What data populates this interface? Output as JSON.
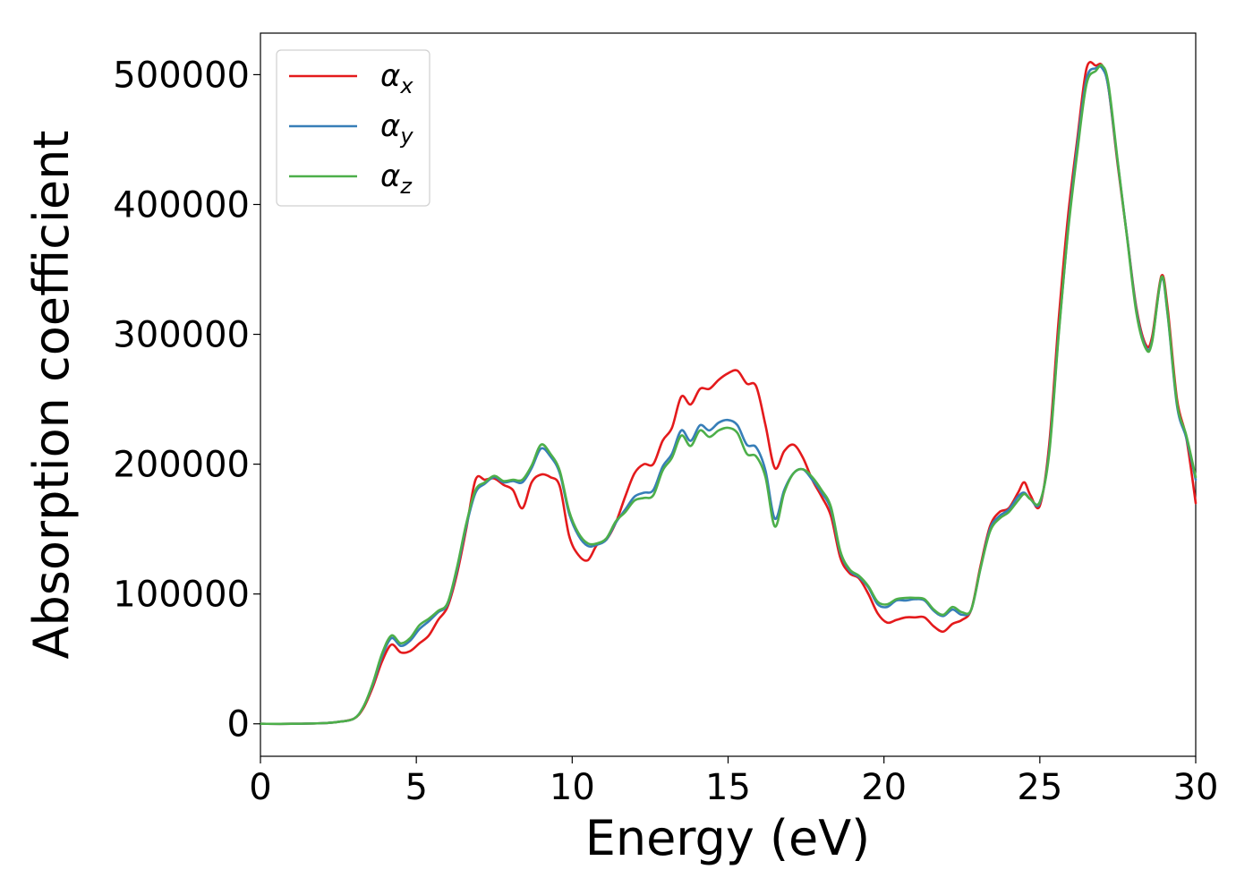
{
  "chart_data": {
    "type": "line",
    "xlabel": "Energy (eV)",
    "ylabel": "Absorption coefficient",
    "xlim": [
      0,
      30
    ],
    "ylim": [
      -25000,
      532000
    ],
    "xticks": [
      0,
      5,
      10,
      15,
      20,
      25,
      30
    ],
    "yticks": [
      0,
      100000,
      200000,
      300000,
      400000,
      500000
    ],
    "grid": false,
    "legend_position": "top-left",
    "series": [
      {
        "name": "α_x",
        "legend_base": "α",
        "legend_sub": "x",
        "color": "#e41a1c",
        "x": [
          0,
          1,
          2,
          2.5,
          3,
          3.3,
          3.6,
          3.9,
          4.2,
          4.5,
          4.8,
          5.1,
          5.4,
          5.7,
          6.0,
          6.3,
          6.6,
          6.9,
          7.2,
          7.5,
          7.8,
          8.1,
          8.4,
          8.7,
          9.0,
          9.3,
          9.6,
          9.9,
          10.2,
          10.5,
          10.8,
          11.1,
          11.4,
          11.7,
          12.0,
          12.3,
          12.6,
          12.9,
          13.2,
          13.5,
          13.8,
          14.1,
          14.4,
          14.7,
          15.0,
          15.3,
          15.6,
          15.9,
          16.2,
          16.5,
          16.8,
          17.1,
          17.4,
          17.7,
          18.0,
          18.3,
          18.6,
          18.9,
          19.2,
          19.5,
          19.8,
          20.1,
          20.4,
          20.7,
          21.0,
          21.3,
          21.6,
          21.9,
          22.2,
          22.5,
          22.8,
          23.1,
          23.4,
          23.7,
          24.0,
          24.3,
          24.5,
          24.7,
          25.0,
          25.3,
          25.6,
          25.9,
          26.2,
          26.5,
          26.8,
          27.0,
          27.2,
          27.5,
          27.8,
          28.1,
          28.4,
          28.6,
          28.9,
          29.1,
          29.4,
          29.7,
          30.0
        ],
        "y": [
          0,
          0,
          500,
          1500,
          4000,
          12000,
          28000,
          48000,
          61000,
          55000,
          56000,
          62000,
          68000,
          80000,
          90000,
          115000,
          150000,
          188000,
          188000,
          189000,
          184000,
          180000,
          166000,
          186000,
          192000,
          190000,
          183000,
          145000,
          130000,
          126000,
          138000,
          142000,
          155000,
          175000,
          193000,
          200000,
          200000,
          218000,
          228000,
          252000,
          246000,
          258000,
          258000,
          265000,
          270000,
          272000,
          262000,
          260000,
          230000,
          197000,
          210000,
          215000,
          205000,
          188000,
          175000,
          160000,
          128000,
          116000,
          112000,
          100000,
          85000,
          78000,
          80000,
          82000,
          82000,
          82000,
          75000,
          71000,
          77000,
          80000,
          88000,
          122000,
          152000,
          163000,
          166000,
          178000,
          186000,
          176000,
          168000,
          215000,
          310000,
          390000,
          450000,
          505000,
          507000,
          507000,
          490000,
          430000,
          375000,
          320000,
          292000,
          298000,
          345000,
          320000,
          250000,
          220000,
          170000
        ]
      },
      {
        "name": "α_y",
        "legend_base": "α",
        "legend_sub": "y",
        "color": "#377eb8",
        "x": [
          0,
          1,
          2,
          2.5,
          3,
          3.3,
          3.6,
          3.9,
          4.2,
          4.5,
          4.8,
          5.1,
          5.4,
          5.7,
          6.0,
          6.3,
          6.6,
          6.9,
          7.2,
          7.5,
          7.8,
          8.1,
          8.4,
          8.7,
          9.0,
          9.3,
          9.6,
          9.9,
          10.2,
          10.5,
          10.8,
          11.1,
          11.4,
          11.7,
          12.0,
          12.3,
          12.6,
          12.9,
          13.2,
          13.5,
          13.8,
          14.1,
          14.4,
          14.7,
          15.0,
          15.3,
          15.6,
          15.9,
          16.2,
          16.5,
          16.8,
          17.1,
          17.4,
          17.7,
          18.0,
          18.3,
          18.6,
          18.9,
          19.2,
          19.5,
          19.8,
          20.1,
          20.4,
          20.7,
          21.0,
          21.3,
          21.6,
          21.9,
          22.2,
          22.5,
          22.8,
          23.1,
          23.4,
          23.7,
          24.0,
          24.3,
          24.5,
          24.7,
          25.0,
          25.3,
          25.6,
          25.9,
          26.2,
          26.5,
          26.8,
          27.0,
          27.2,
          27.5,
          27.8,
          28.1,
          28.4,
          28.6,
          28.9,
          29.1,
          29.4,
          29.7,
          30.0
        ],
        "y": [
          0,
          0,
          500,
          1500,
          4000,
          13000,
          30000,
          52000,
          66000,
          60000,
          64000,
          73000,
          79000,
          86000,
          92000,
          118000,
          152000,
          178000,
          185000,
          190000,
          186000,
          187000,
          186000,
          197000,
          212000,
          206000,
          193000,
          162000,
          145000,
          137000,
          138000,
          142000,
          155000,
          165000,
          175000,
          178000,
          180000,
          198000,
          208000,
          226000,
          218000,
          230000,
          226000,
          232000,
          234000,
          230000,
          215000,
          213000,
          195000,
          158000,
          180000,
          193000,
          196000,
          188000,
          178000,
          165000,
          132000,
          118000,
          113000,
          105000,
          92000,
          90000,
          95000,
          95000,
          96000,
          95000,
          87000,
          83000,
          88000,
          84000,
          88000,
          120000,
          150000,
          160000,
          165000,
          175000,
          178000,
          173000,
          170000,
          210000,
          300000,
          380000,
          445000,
          497000,
          505000,
          505000,
          490000,
          432000,
          375000,
          318000,
          290000,
          295000,
          343000,
          315000,
          245000,
          220000,
          188000
        ]
      },
      {
        "name": "α_z",
        "legend_base": "α",
        "legend_sub": "z",
        "color": "#4daf4a",
        "x": [
          0,
          1,
          2,
          2.5,
          3,
          3.3,
          3.6,
          3.9,
          4.2,
          4.5,
          4.8,
          5.1,
          5.4,
          5.7,
          6.0,
          6.3,
          6.6,
          6.9,
          7.2,
          7.5,
          7.8,
          8.1,
          8.4,
          8.7,
          9.0,
          9.3,
          9.6,
          9.9,
          10.2,
          10.5,
          10.8,
          11.1,
          11.4,
          11.7,
          12.0,
          12.3,
          12.6,
          12.9,
          13.2,
          13.5,
          13.8,
          14.1,
          14.4,
          14.7,
          15.0,
          15.3,
          15.6,
          15.9,
          16.2,
          16.5,
          16.8,
          17.1,
          17.4,
          17.7,
          18.0,
          18.3,
          18.6,
          18.9,
          19.2,
          19.5,
          19.8,
          20.1,
          20.4,
          20.7,
          21.0,
          21.3,
          21.6,
          21.9,
          22.2,
          22.5,
          22.8,
          23.1,
          23.4,
          23.7,
          24.0,
          24.3,
          24.5,
          24.7,
          25.0,
          25.3,
          25.6,
          25.9,
          26.2,
          26.5,
          26.8,
          27.0,
          27.2,
          27.5,
          27.8,
          28.1,
          28.4,
          28.6,
          28.9,
          29.1,
          29.4,
          29.7,
          30.0
        ],
        "y": [
          0,
          0,
          500,
          1500,
          4000,
          13000,
          31000,
          54000,
          68000,
          62000,
          66000,
          76000,
          81000,
          87000,
          93000,
          120000,
          154000,
          180000,
          186000,
          191000,
          187000,
          188000,
          188000,
          199000,
          215000,
          208000,
          195000,
          164000,
          147000,
          139000,
          139000,
          143000,
          156000,
          163000,
          172000,
          174000,
          176000,
          195000,
          205000,
          222000,
          214000,
          226000,
          221000,
          226000,
          228000,
          224000,
          208000,
          206000,
          190000,
          152000,
          178000,
          193000,
          196000,
          190000,
          180000,
          167000,
          133000,
          119000,
          114000,
          106000,
          94000,
          92000,
          96000,
          97000,
          97000,
          96000,
          88000,
          84000,
          90000,
          86000,
          88000,
          120000,
          148000,
          158000,
          163000,
          172000,
          177000,
          173000,
          171000,
          208000,
          298000,
          378000,
          440000,
          493000,
          503000,
          507000,
          493000,
          433000,
          374000,
          316000,
          289000,
          294000,
          344000,
          316000,
          247000,
          222000,
          190000
        ]
      }
    ]
  }
}
